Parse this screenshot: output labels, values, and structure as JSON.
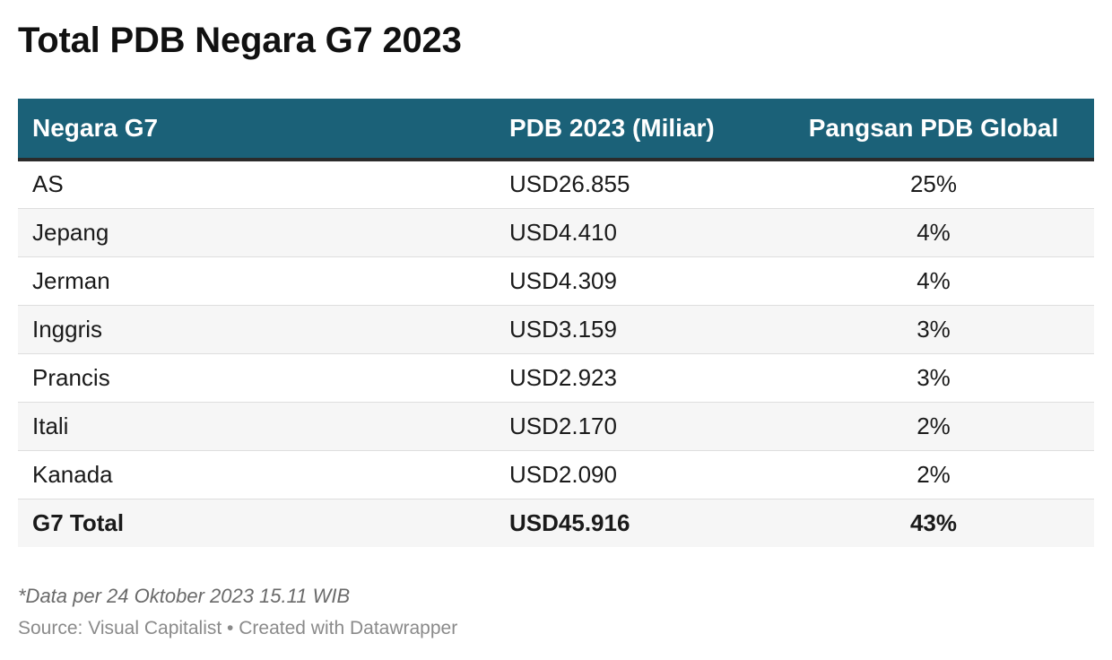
{
  "chart_data": {
    "type": "table",
    "title": "Total PDB Negara G7 2023",
    "columns": [
      "Negara G7",
      "PDB 2023 (Miliar)",
      "Pangsan PDB Global"
    ],
    "rows": [
      [
        "AS",
        "USD26.855",
        "25%"
      ],
      [
        "Jepang",
        "USD4.410",
        "4%"
      ],
      [
        "Jerman",
        "USD4.309",
        "4%"
      ],
      [
        "Inggris",
        "USD3.159",
        "3%"
      ],
      [
        "Prancis",
        "USD2.923",
        "3%"
      ],
      [
        "Itali",
        "USD2.170",
        "2%"
      ],
      [
        "Kanada",
        "USD2.090",
        "2%"
      ]
    ],
    "total": [
      "G7 Total",
      "USD45.916",
      "43%"
    ],
    "header_color": "#1b6178",
    "note": "*Data per 24 Oktober 2023 15.11 WIB",
    "source": "Source: Visual Capitalist • Created with Datawrapper"
  }
}
